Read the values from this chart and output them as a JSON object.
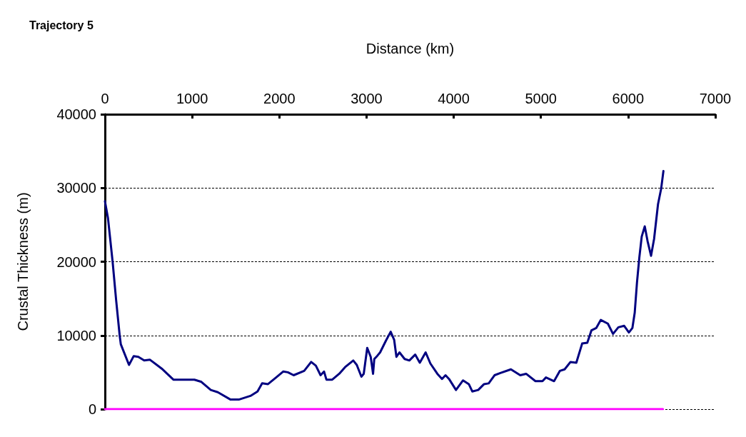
{
  "chart_data": {
    "type": "line",
    "title": "Trajectory 5",
    "xlabel": "Distance (km)",
    "ylabel": "Crustal Thickness (m)",
    "xlim": [
      0,
      7000
    ],
    "xticks": [
      0,
      1000,
      2000,
      3000,
      4000,
      5000,
      6000,
      7000
    ],
    "ylim": [
      0,
      40000
    ],
    "yticks": [
      0,
      10000,
      20000,
      30000,
      40000
    ],
    "grid": "y",
    "marker": "none",
    "line_style": "solid",
    "series": [
      {
        "color": "#000080",
        "x": [
          0,
          35,
          88,
          129,
          169,
          182,
          276,
          330,
          383,
          450,
          517,
          651,
          785,
          865,
          1026,
          1106,
          1214,
          1294,
          1441,
          1535,
          1669,
          1750,
          1803,
          1870,
          1963,
          2044,
          2098,
          2164,
          2285,
          2365,
          2419,
          2473,
          2513,
          2540,
          2607,
          2687,
          2754,
          2848,
          2888,
          2941,
          2968,
          3008,
          3048,
          3075,
          3089,
          3121,
          3156,
          3223,
          3277,
          3317,
          3343,
          3378,
          3437,
          3491,
          3558,
          3611,
          3678,
          3732,
          3812,
          3866,
          3906,
          3946,
          4026,
          4107,
          4173,
          4213,
          4281,
          4348,
          4401,
          4468,
          4535,
          4656,
          4763,
          4830,
          4937,
          5018,
          5058,
          5151,
          5218,
          5272,
          5339,
          5406,
          5473,
          5532,
          5580,
          5634,
          5687,
          5768,
          5827,
          5888,
          5955,
          6009,
          6049,
          6076,
          6102,
          6129,
          6156,
          6191,
          6223,
          6263,
          6298,
          6343,
          6379,
          6405
        ],
        "values": [
          28200,
          25900,
          20000,
          14700,
          10000,
          8800,
          6000,
          7200,
          7100,
          6600,
          6700,
          5500,
          4000,
          4000,
          4000,
          3700,
          2600,
          2300,
          1300,
          1300,
          1800,
          2400,
          3500,
          3400,
          4300,
          5100,
          5000,
          4600,
          5200,
          6400,
          5900,
          4600,
          5100,
          4000,
          4000,
          4800,
          5700,
          6600,
          6000,
          4400,
          4800,
          8300,
          7100,
          4800,
          6800,
          7200,
          7700,
          9300,
          10500,
          9400,
          7100,
          7700,
          6800,
          6600,
          7400,
          6300,
          7700,
          6200,
          4800,
          4100,
          4600,
          4100,
          2600,
          3900,
          3400,
          2400,
          2600,
          3400,
          3500,
          4600,
          4900,
          5400,
          4600,
          4800,
          3800,
          3800,
          4300,
          3800,
          5200,
          5400,
          6400,
          6300,
          8900,
          9000,
          10700,
          11000,
          12100,
          11600,
          10200,
          11100,
          11300,
          10400,
          11000,
          13100,
          17200,
          20600,
          23400,
          24800,
          22800,
          20800,
          23100,
          27800,
          29900,
          32300
        ]
      },
      {
        "color": "#ff00ff",
        "x": [
          0,
          6400
        ],
        "values": [
          0,
          0
        ]
      }
    ]
  }
}
